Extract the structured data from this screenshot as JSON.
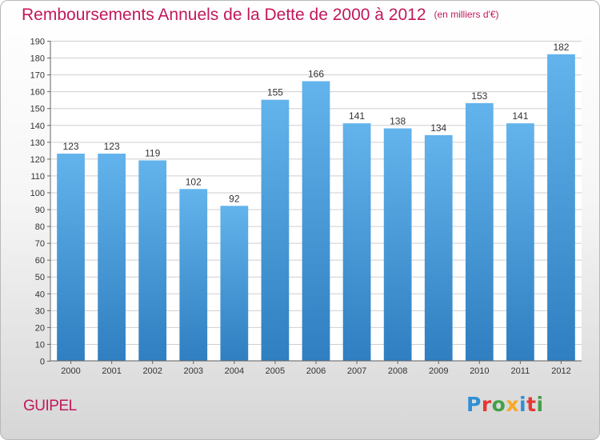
{
  "title": "Remboursements Annuels de la Dette de 2000 à 2012",
  "subtitle": "(en milliers d'€)",
  "commune": "GUIPEL",
  "logo": {
    "text": "Proxiti",
    "letters": [
      {
        "ch": "P",
        "color": "#2f8fd6"
      },
      {
        "ch": "r",
        "color": "#e53935"
      },
      {
        "ch": "o",
        "color": "#43a047"
      },
      {
        "ch": "x",
        "color": "#f9a825"
      },
      {
        "ch": "i",
        "color": "#2f8fd6"
      },
      {
        "ch": "t",
        "color": "#e53935"
      },
      {
        "ch": "i",
        "color": "#43a047"
      }
    ]
  },
  "colors": {
    "bar_top": "#63b3ec",
    "bar_bottom": "#2f7fc1",
    "accent": "#c2185b",
    "grid": "#cfcfcf"
  },
  "chart_data": {
    "type": "bar",
    "title": "Remboursements Annuels de la Dette de 2000 à 2012",
    "subtitle": "(en milliers d'€)",
    "categories": [
      "2000",
      "2001",
      "2002",
      "2003",
      "2004",
      "2005",
      "2006",
      "2007",
      "2008",
      "2009",
      "2010",
      "2011",
      "2012"
    ],
    "values": [
      123,
      123,
      119,
      102,
      92,
      155,
      166,
      141,
      138,
      134,
      153,
      141,
      182
    ],
    "ylim": [
      0,
      190
    ],
    "yticks": [
      0,
      10,
      20,
      30,
      40,
      50,
      60,
      70,
      80,
      90,
      100,
      110,
      120,
      130,
      140,
      150,
      160,
      170,
      180,
      190
    ],
    "grid": true,
    "xlabel": "",
    "ylabel": ""
  }
}
